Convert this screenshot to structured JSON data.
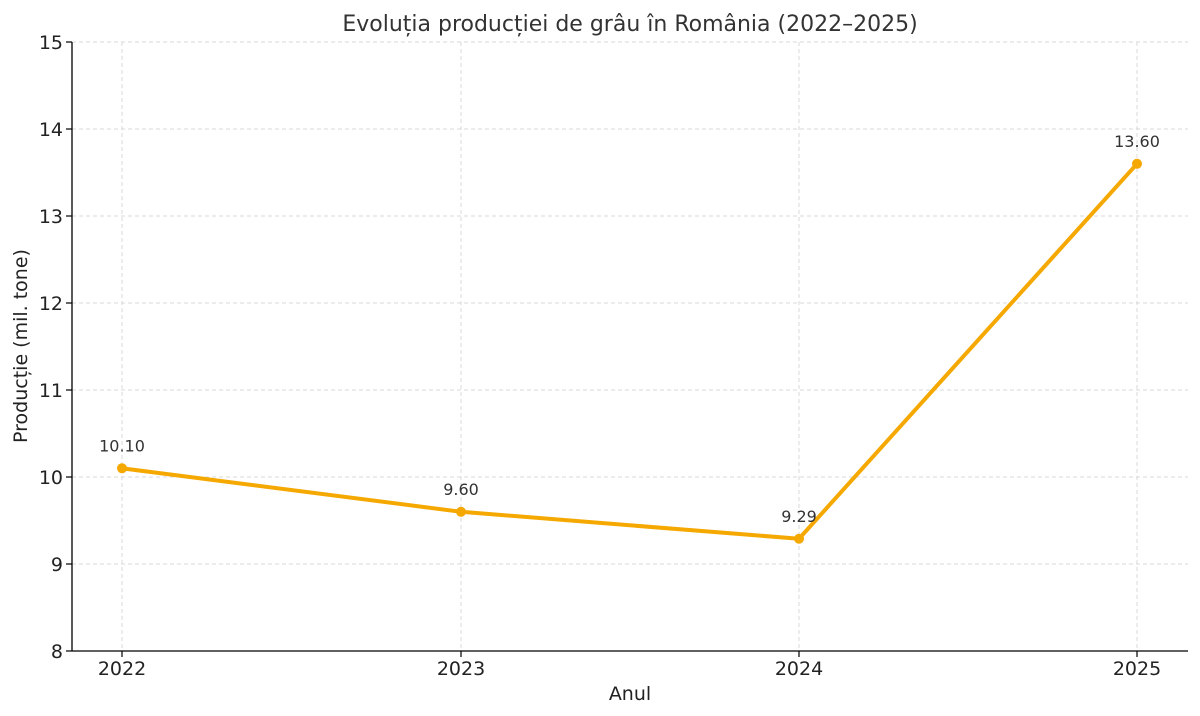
{
  "chart_data": {
    "type": "line",
    "title": "Evoluția producției de grâu în România (2022–2025)",
    "xlabel": "Anul",
    "ylabel": "Producție (mil. tone)",
    "x": [
      "2022",
      "2023",
      "2024",
      "2025"
    ],
    "series": [
      {
        "values": [
          10.1,
          9.6,
          9.29,
          13.6
        ],
        "data_labels": [
          "10.10",
          "9.60",
          "9.29",
          "13.60"
        ],
        "color": "#F5A800",
        "marker": "circle"
      }
    ],
    "ylim": [
      8,
      15
    ],
    "yticks": [
      "8",
      "9",
      "10",
      "11",
      "12",
      "13",
      "14",
      "15"
    ],
    "grid": true,
    "grid_style": "dashed",
    "legend": false
  },
  "colors": {
    "line": "#F5A800",
    "grid": "#d9d9d9",
    "axis": "#000000",
    "text": "#333333"
  }
}
